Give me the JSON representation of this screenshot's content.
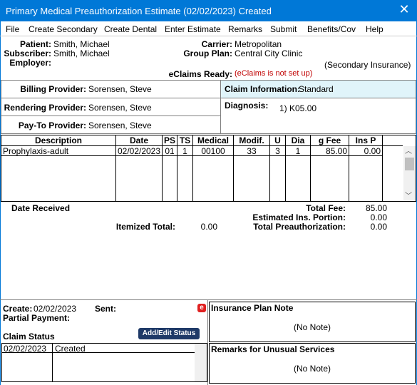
{
  "title": "Primary Medical Preauthorization Estimate (02/02/2023) Created",
  "menu": [
    "File",
    "Create Secondary",
    "Create Dental",
    "Enter Estimate",
    "Remarks",
    "Submit",
    "Benefits/Cov",
    "Help"
  ],
  "header": {
    "patient": {
      "label": "Patient:",
      "value": "Smith, Michael"
    },
    "subscriber": {
      "label": "Subscriber:",
      "value": "Smith, Michael"
    },
    "employer": {
      "label": "Employer:"
    },
    "carrier": {
      "label": "Carrier:",
      "value": "Metropolitan"
    },
    "group_plan": {
      "label": "Group Plan:",
      "value": "Central City Clinic"
    },
    "insurance_type": "(Secondary Insurance)",
    "eclaims": {
      "label": "eClaims Ready:",
      "value": "(eClaims is not set up)"
    }
  },
  "providers": {
    "billing": {
      "label": "Billing Provider:",
      "value": "Sorensen, Steve"
    },
    "rendering": {
      "label": "Rendering Provider:",
      "value": "Sorensen, Steve"
    },
    "pay_to": {
      "label": "Pay-To Provider:",
      "value": "Sorensen, Steve"
    }
  },
  "claim_info": {
    "label": "Claim Information:",
    "value": "Standard"
  },
  "diagnosis": {
    "label": "Diagnosis:",
    "value": "1) K05.00"
  },
  "table": {
    "columns": [
      "Description",
      "Date",
      "PS",
      "TS",
      "Medical",
      "Modif.",
      "U",
      "Dia",
      "g  Fee",
      "Ins P"
    ],
    "rows": [
      [
        "Prophylaxis-adult",
        "02/02/2023",
        "01",
        "1",
        "00100",
        "33",
        "3",
        "1",
        "85.00",
        "0.00"
      ]
    ]
  },
  "totals": {
    "date_received": "Date Received",
    "total_fee": {
      "label": "Total Fee:",
      "value": "85.00"
    },
    "est_ins": {
      "label": "Estimated Ins. Portion:",
      "value": "0.00"
    },
    "itemized": {
      "label": "Itemized Total:",
      "value": "0.00"
    },
    "total_preauth": {
      "label": "Total Preauthorization:",
      "value": "0.00"
    }
  },
  "status": {
    "create": {
      "label": "Create:",
      "value": "02/02/2023"
    },
    "sent": {
      "label": "Sent:"
    },
    "partial_payment": {
      "label": "Partial Payment:"
    },
    "claim_status": "Claim Status",
    "button": "Add/Edit Status",
    "rows": [
      [
        "02/02/2023",
        "Created"
      ]
    ]
  },
  "insurance_plan_note": {
    "title": "Insurance Plan Note",
    "value": "(No Note)"
  },
  "remarks": {
    "title": "Remarks for Unusual Services",
    "value": "(No Note)"
  }
}
